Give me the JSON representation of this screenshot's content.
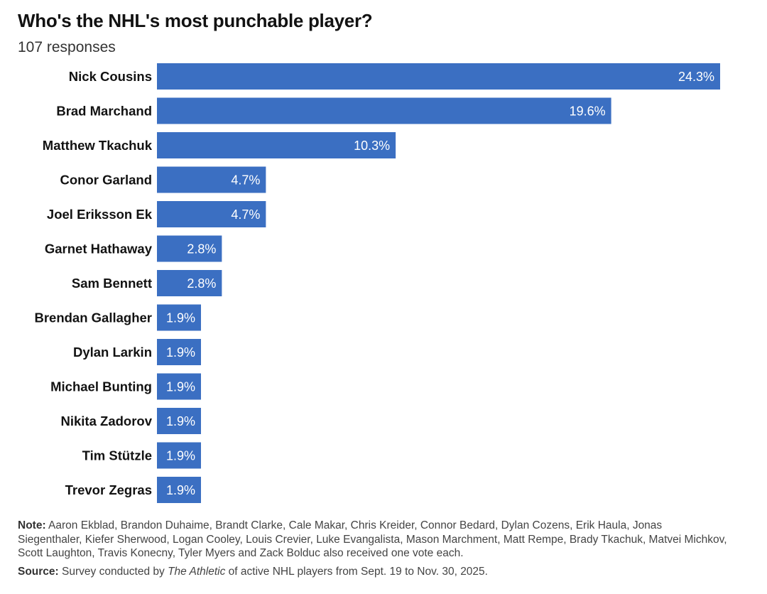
{
  "chart_data": {
    "type": "bar",
    "orientation": "horizontal",
    "title": "Who's the NHL's most punchable player?",
    "subtitle": "107 responses",
    "categories": [
      "Nick Cousins",
      "Brad Marchand",
      "Matthew Tkachuk",
      "Conor Garland",
      "Joel Eriksson Ek",
      "Garnet Hathaway",
      "Sam Bennett",
      "Brendan Gallagher",
      "Dylan Larkin",
      "Michael Bunting",
      "Nikita Zadorov",
      "Tim Stützle",
      "Trevor Zegras"
    ],
    "values": [
      24.3,
      19.6,
      10.3,
      4.7,
      4.7,
      2.8,
      2.8,
      1.9,
      1.9,
      1.9,
      1.9,
      1.9,
      1.9
    ],
    "value_suffix": "%",
    "bar_color": "#3b6fc2",
    "grid": false,
    "xlim": [
      0,
      24.3
    ]
  },
  "notes": {
    "note_label": "Note:",
    "note_text": " Aaron Ekblad, Brandon Duhaime, Brandt Clarke, Cale Makar, Chris Kreider, Connor Bedard, Dylan Cozens, Erik Haula, Jonas Siegenthaler, Kiefer Sherwood, Logan Cooley, Louis Crevier, Luke Evangalista, Mason Marchment, Matt Rempe, Brady Tkachuk, Matvei Michkov, Scott Laughton, Travis Konecny, Tyler Myers and Zack Bolduc also received one vote each.",
    "source_label": "Source:",
    "source_pre": " Survey conducted by ",
    "source_italic": "The Athletic",
    "source_post": " of active NHL players from Sept. 19 to Nov. 30, 2025."
  }
}
